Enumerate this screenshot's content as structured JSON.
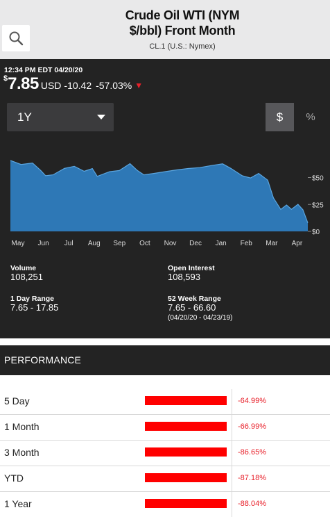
{
  "header": {
    "title_line1": "Crude Oil WTI (NYM",
    "title_line2": "$/bbl) Front Month",
    "subtitle": "CL.1 (U.S.: Nymex)",
    "search_icon": "search-icon"
  },
  "quote": {
    "timestamp": "12:34 PM EDT 04/20/20",
    "currency_symbol": "$",
    "price": "7.85",
    "unit": "USD",
    "change": "-10.42",
    "change_pct": "-57.03%",
    "down_arrow": "▼",
    "down_color": "#e8202a"
  },
  "controls": {
    "range": "1Y",
    "dollar": "$",
    "percent": "%"
  },
  "chart_data": {
    "type": "area",
    "x_ticks": [
      "May",
      "Jun",
      "Jul",
      "Aug",
      "Sep",
      "Oct",
      "Nov",
      "Dec",
      "Jan",
      "Feb",
      "Mar",
      "Apr"
    ],
    "y_ticks": [
      "$50",
      "$25",
      "$0"
    ],
    "y_tick_values": [
      50,
      25,
      0
    ],
    "ylim": [
      0,
      80
    ],
    "x": [
      "2019-04-23",
      "2019-05-06",
      "2019-05-20",
      "2019-05-30",
      "2019-06-05",
      "2019-06-14",
      "2019-06-28",
      "2019-07-10",
      "2019-07-22",
      "2019-08-01",
      "2019-08-07",
      "2019-08-22",
      "2019-09-03",
      "2019-09-16",
      "2019-09-25",
      "2019-10-03",
      "2019-10-15",
      "2019-10-29",
      "2019-11-12",
      "2019-11-26",
      "2019-12-10",
      "2019-12-24",
      "2020-01-07",
      "2020-01-17",
      "2020-01-31",
      "2020-02-10",
      "2020-02-20",
      "2020-03-02",
      "2020-03-09",
      "2020-03-18",
      "2020-03-25",
      "2020-03-31",
      "2020-04-08",
      "2020-04-14",
      "2020-04-20"
    ],
    "values": [
      65.9,
      62.1,
      63.5,
      56.6,
      51.7,
      52.5,
      58.5,
      60.4,
      55.8,
      58.3,
      51.1,
      55.4,
      56.5,
      62.9,
      56.5,
      52.5,
      53.8,
      55.5,
      57.1,
      58.4,
      59.2,
      61.1,
      62.7,
      58.5,
      51.6,
      49.6,
      53.8,
      47.6,
      31.1,
      20.4,
      24.5,
      20.5,
      25.1,
      20.1,
      7.85
    ],
    "fill_color": "#2e78b6",
    "line_color": "#5ba6e0",
    "grid": false
  },
  "stats": {
    "volume_label": "Volume",
    "volume_value": "108,251",
    "open_interest_label": "Open Interest",
    "open_interest_value": "108,593",
    "day_range_label": "1 Day Range",
    "day_range_value": "7.65 - 17.85",
    "week52_label": "52 Week Range",
    "week52_value": "7.65 - 66.60",
    "week52_dates": "(04/20/20 - 04/23/19)"
  },
  "performance": {
    "title": "PERFORMANCE",
    "bar_color": "#ff0000",
    "rows": [
      {
        "label": "5 Day",
        "value": "-64.99%",
        "pct": -64.99
      },
      {
        "label": "1 Month",
        "value": "-66.99%",
        "pct": -66.99
      },
      {
        "label": "3 Month",
        "value": "-86.65%",
        "pct": -86.65
      },
      {
        "label": "YTD",
        "value": "-87.18%",
        "pct": -87.18
      },
      {
        "label": "1 Year",
        "value": "-88.04%",
        "pct": -88.04
      }
    ]
  }
}
